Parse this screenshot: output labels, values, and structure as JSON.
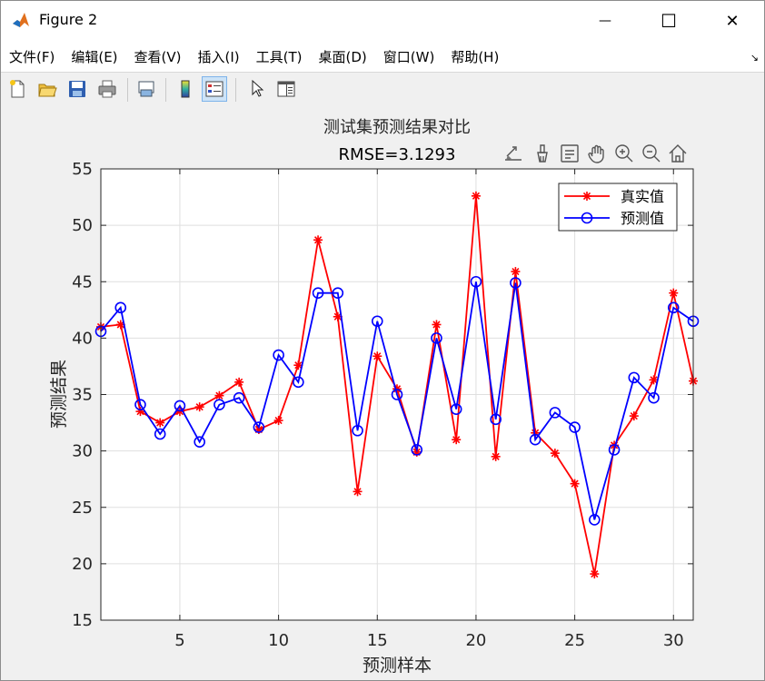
{
  "window": {
    "title": "Figure 2",
    "minimize_glyph": "—",
    "maximize_glyph": "☐",
    "close_glyph": "✕"
  },
  "menu": {
    "items": [
      "文件(F)",
      "编辑(E)",
      "查看(V)",
      "插入(I)",
      "工具(T)",
      "桌面(D)",
      "窗口(W)",
      "帮助(H)"
    ],
    "dock_glyph": "↘"
  },
  "toolbar": {
    "icons": [
      "new-figure-icon",
      "open-file-icon",
      "save-icon",
      "print-icon",
      "link-plot-icon",
      "colorbar-icon",
      "legend-icon",
      "pointer-icon",
      "property-inspector-icon"
    ]
  },
  "axes_toolbar": {
    "icons": [
      "export-icon",
      "brush-icon",
      "data-tips-icon",
      "pan-icon",
      "zoom-in-icon",
      "zoom-out-icon",
      "home-icon"
    ]
  },
  "colors": {
    "true_series": "#ff0000",
    "pred_series": "#0000ff",
    "axes_bg": "#ffffff",
    "figure_bg": "#f0f0f0",
    "grid": "#dfdfdf"
  },
  "chart_data": {
    "type": "line",
    "title": "测试集预测结果对比",
    "subtitle": "RMSE=3.1293",
    "xlabel": "预测样本",
    "ylabel": "预测结果",
    "xlim": [
      1,
      31
    ],
    "ylim": [
      15,
      55
    ],
    "xticks": [
      5,
      10,
      15,
      20,
      25,
      30
    ],
    "yticks": [
      15,
      20,
      25,
      30,
      35,
      40,
      45,
      50,
      55
    ],
    "grid": true,
    "legend_position": "top-right",
    "x": [
      1,
      2,
      3,
      4,
      5,
      6,
      7,
      8,
      9,
      10,
      11,
      12,
      13,
      14,
      15,
      16,
      17,
      18,
      19,
      20,
      21,
      22,
      23,
      24,
      25,
      26,
      27,
      28,
      29,
      30,
      31
    ],
    "series": [
      {
        "name": "真实值",
        "color": "#ff0000",
        "marker": "asterisk",
        "values": [
          41.0,
          41.2,
          33.5,
          32.5,
          33.5,
          33.9,
          34.9,
          36.1,
          31.9,
          32.7,
          37.6,
          48.7,
          41.9,
          26.4,
          38.4,
          35.5,
          29.9,
          41.2,
          31.0,
          52.6,
          29.5,
          45.9,
          31.6,
          29.8,
          27.1,
          19.1,
          30.5,
          33.1,
          36.3,
          44.0,
          36.2
        ]
      },
      {
        "name": "预测值",
        "color": "#0000ff",
        "marker": "circle",
        "values": [
          40.6,
          42.7,
          34.1,
          31.5,
          34.0,
          30.8,
          34.1,
          34.7,
          32.1,
          38.5,
          36.1,
          44.0,
          44.0,
          31.8,
          41.5,
          35.0,
          30.1,
          40.0,
          33.7,
          45.0,
          32.8,
          44.9,
          31.0,
          33.4,
          32.1,
          23.9,
          30.1,
          36.5,
          34.7,
          42.7,
          41.5
        ]
      }
    ]
  }
}
